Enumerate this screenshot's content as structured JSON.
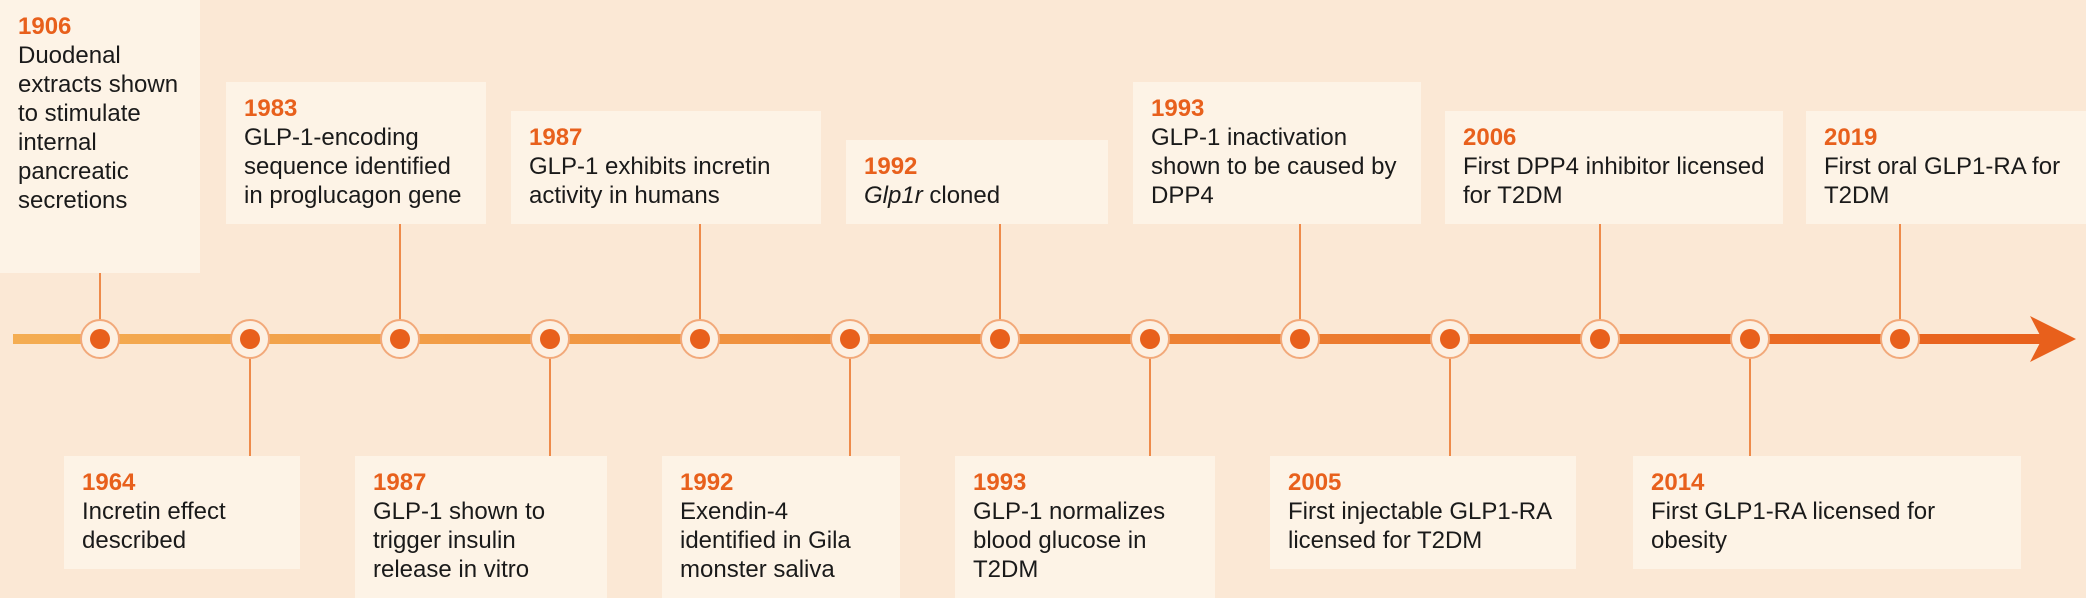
{
  "events": [
    {
      "year": "1906",
      "description": "Duodenal extracts shown to stimulate internal pancreatic secretions"
    },
    {
      "year": "1964",
      "description": "Incretin effect described"
    },
    {
      "year": "1983",
      "description": "GLP-1-encoding sequence identified in proglucagon gene"
    },
    {
      "year": "1987",
      "description": "GLP-1 shown to trigger insulin release in vitro"
    },
    {
      "year": "1987",
      "description": "GLP-1 exhibits incretin activity in humans"
    },
    {
      "year": "1992",
      "description": "Exendin-4 identified in Gila monster saliva"
    },
    {
      "year": "1992",
      "italic": "Glp1r",
      "description": "cloned"
    },
    {
      "year": "1993",
      "description": "GLP-1 normalizes blood glucose in T2DM"
    },
    {
      "year": "1993",
      "description": "GLP-1 inactivation shown to be caused by DPP4"
    },
    {
      "year": "2005",
      "description": "First injectable GLP1-RA licensed for T2DM"
    },
    {
      "year": "2006",
      "description": "First DPP4 inhibitor licensed for T2DM"
    },
    {
      "year": "2014",
      "description": "First GLP1-RA licensed for obesity"
    },
    {
      "year": "2019",
      "description": "First oral GLP1-RA for T2DM"
    }
  ]
}
